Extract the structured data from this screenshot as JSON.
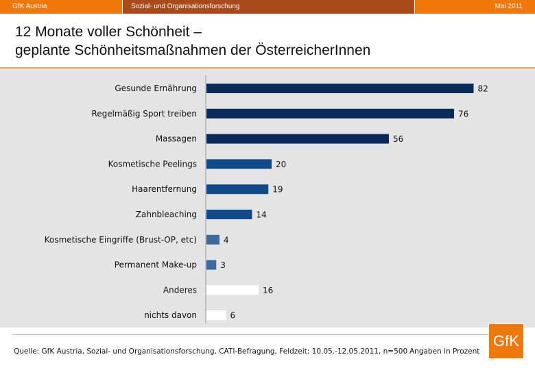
{
  "header": {
    "company": "GfK Austria",
    "department": "Sozial- und Organisationsforschung",
    "date": "Mai 2011"
  },
  "title": {
    "line1": "12 Monate voller Schönheit –",
    "line2": "geplante Schönheitsmaßnahmen der ÖsterreicherInnen"
  },
  "chart_data": {
    "type": "bar",
    "orientation": "horizontal",
    "title": "12 Monate voller Schönheit – geplante Schönheitsmaßnahmen der ÖsterreicherInnen",
    "unit": "Angaben in Prozent",
    "xlim": [
      0,
      100
    ],
    "grid": false,
    "categories": [
      "Gesunde Ernährung",
      "Regelmäßig Sport treiben",
      "Massagen",
      "Kosmetische Peelings",
      "Haarentfernung",
      "Zahnbleaching",
      "Kosmetische Eingriffe (Brust-OP, etc)",
      "Permanent Make-up",
      "Anderes",
      "nichts davon"
    ],
    "values": [
      82,
      76,
      56,
      20,
      19,
      14,
      4,
      3,
      16,
      6
    ],
    "colors": [
      "#0b2a5c",
      "#0b2a5c",
      "#0b2a5c",
      "#0f4a8a",
      "#0f4a8a",
      "#0f4a8a",
      "#3a6a9e",
      "#3a6a9e",
      "#ffffff",
      "#ffffff"
    ]
  },
  "footer": {
    "source": "Quelle: GfK Austria, Sozial- und Organisationsforschung, CATI-Befragung,  Feldzeit: 10.05.-12.05.2011, n=500",
    "unit_note": "Angaben in Prozent",
    "logo_text": "GfK"
  }
}
